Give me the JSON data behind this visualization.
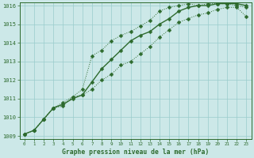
{
  "title": "Graphe pression niveau de la mer (hPa)",
  "bg_color": "#cce8e8",
  "line_color": "#2d6a2d",
  "grid_color": "#99cccc",
  "x_values": [
    0,
    1,
    2,
    3,
    4,
    5,
    6,
    7,
    8,
    9,
    10,
    11,
    12,
    13,
    14,
    15,
    16,
    17,
    18,
    19,
    20,
    21,
    22,
    23
  ],
  "y_top": [
    1009.1,
    1009.3,
    1009.9,
    1010.5,
    1010.8,
    1011.1,
    1011.5,
    1013.3,
    1013.6,
    1014.1,
    1014.4,
    1014.6,
    1014.9,
    1015.2,
    1015.7,
    1015.9,
    1016.0,
    1016.1,
    1016.0,
    1016.1,
    1016.1,
    1016.1,
    1016.0,
    1015.9
  ],
  "y_mid": [
    1009.1,
    1009.3,
    1009.9,
    1010.5,
    1010.7,
    1011.0,
    1011.2,
    1011.9,
    1012.6,
    1013.1,
    1013.6,
    1014.1,
    1014.4,
    1014.6,
    1015.0,
    1015.3,
    1015.7,
    1015.9,
    1016.0,
    1016.0,
    1016.1,
    1016.1,
    1016.1,
    1016.0
  ],
  "y_bot": [
    1009.1,
    1009.3,
    1009.9,
    1010.5,
    1010.6,
    1011.1,
    1011.2,
    1011.5,
    1012.0,
    1012.3,
    1012.8,
    1013.0,
    1013.4,
    1013.8,
    1014.3,
    1014.7,
    1015.1,
    1015.3,
    1015.5,
    1015.6,
    1015.8,
    1015.9,
    1015.9,
    1015.4
  ],
  "ylim": [
    1009,
    1016
  ],
  "xlim": [
    -0.5,
    23.5
  ],
  "yticks": [
    1009,
    1010,
    1011,
    1012,
    1013,
    1014,
    1015,
    1016
  ],
  "xticks": [
    0,
    1,
    2,
    3,
    4,
    5,
    6,
    7,
    8,
    9,
    10,
    11,
    12,
    13,
    14,
    15,
    16,
    17,
    18,
    19,
    20,
    21,
    22,
    23
  ],
  "figsize": [
    3.2,
    2.0
  ],
  "dpi": 100
}
